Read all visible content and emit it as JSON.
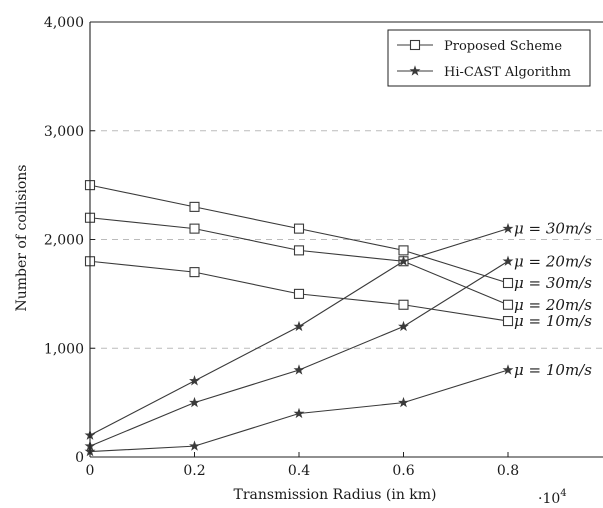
{
  "chart_data": {
    "type": "line",
    "xlabel": "Transmission Radius (in km)",
    "ylabel": "Number of collisions",
    "x_multiplier_label": "·10",
    "x_multiplier_exp": "4",
    "xlim": [
      0,
      1.0
    ],
    "ylim": [
      0,
      4000
    ],
    "x_ticks": [
      0,
      0.2,
      0.4,
      0.6,
      0.8
    ],
    "x_tick_labels": [
      "0",
      "0.2",
      "0.4",
      "0.6",
      "0.8"
    ],
    "y_ticks": [
      0,
      1000,
      2000,
      3000,
      4000
    ],
    "y_tick_labels": [
      "0",
      "1,000",
      "2,000",
      "3,000",
      "4,000"
    ],
    "grid": "horizontal dashed",
    "legend_position": "top-right",
    "legend": [
      {
        "label": "Proposed Scheme",
        "marker": "square"
      },
      {
        "label": "Hi-CAST Algorithm",
        "marker": "star"
      }
    ],
    "series": [
      {
        "name": "Proposed Scheme",
        "marker": "square",
        "annotation": "μ = 30m/s",
        "x": [
          0,
          0.2,
          0.4,
          0.6,
          0.8
        ],
        "y": [
          2500,
          2300,
          2100,
          1900,
          1600
        ]
      },
      {
        "name": "Proposed Scheme",
        "marker": "square",
        "annotation": "μ = 20m/s",
        "x": [
          0,
          0.2,
          0.4,
          0.6,
          0.8
        ],
        "y": [
          2200,
          2100,
          1900,
          1800,
          1400
        ]
      },
      {
        "name": "Proposed Scheme",
        "marker": "square",
        "annotation": "μ = 10m/s",
        "x": [
          0,
          0.2,
          0.4,
          0.6,
          0.8
        ],
        "y": [
          1800,
          1700,
          1500,
          1400,
          1250
        ]
      },
      {
        "name": "Hi-CAST Algorithm",
        "marker": "star",
        "annotation": "μ = 30m/s",
        "x": [
          0,
          0.2,
          0.4,
          0.6,
          0.8
        ],
        "y": [
          200,
          700,
          1200,
          1800,
          2100
        ]
      },
      {
        "name": "Hi-CAST Algorithm",
        "marker": "star",
        "annotation": "μ = 20m/s",
        "x": [
          0,
          0.2,
          0.4,
          0.6,
          0.8
        ],
        "y": [
          100,
          500,
          800,
          1200,
          1800
        ]
      },
      {
        "name": "Hi-CAST Algorithm",
        "marker": "star",
        "annotation": "μ = 10m/s",
        "x": [
          0,
          0.2,
          0.4,
          0.6,
          0.8
        ],
        "y": [
          50,
          100,
          400,
          500,
          800
        ]
      }
    ]
  },
  "colors": {
    "line": "#3a3a3a",
    "axis": "#222222",
    "grid": "#bbbbbb",
    "marker_fill": "#ffffff"
  }
}
